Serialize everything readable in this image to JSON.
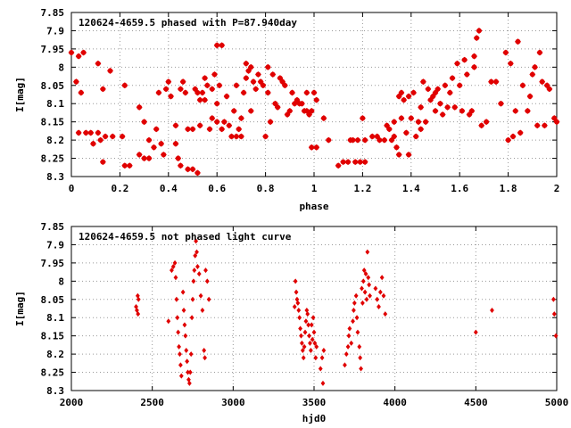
{
  "chart_data": [
    {
      "type": "scatter",
      "title": "120624-4659.5 phased with P=87.940day",
      "xlabel": "phase",
      "ylabel": "I[mag]",
      "xlim": [
        0,
        2
      ],
      "ylim": [
        8.3,
        7.85
      ],
      "y_inverted": true,
      "grid": true,
      "color": "#e00000",
      "marker": "star",
      "x_ticks": [
        "0",
        "0.2",
        "0.4",
        "0.6",
        "0.8",
        "1",
        "1.2",
        "1.4",
        "1.6",
        "1.8",
        "2"
      ],
      "y_ticks": [
        "7.85",
        "7.9",
        "7.95",
        "8",
        "8.05",
        "8.1",
        "8.15",
        "8.2",
        "8.25",
        "8.3"
      ],
      "points": [
        [
          0.0,
          7.96
        ],
        [
          0.03,
          7.97
        ],
        [
          0.05,
          7.96
        ],
        [
          0.02,
          8.04
        ],
        [
          0.04,
          8.07
        ],
        [
          0.11,
          7.99
        ],
        [
          0.13,
          8.06
        ],
        [
          0.16,
          8.01
        ],
        [
          0.03,
          8.18
        ],
        [
          0.06,
          8.18
        ],
        [
          0.08,
          8.18
        ],
        [
          0.09,
          8.21
        ],
        [
          0.11,
          8.18
        ],
        [
          0.12,
          8.2
        ],
        [
          0.14,
          8.19
        ],
        [
          0.17,
          8.19
        ],
        [
          0.13,
          8.26
        ],
        [
          0.21,
          8.19
        ],
        [
          0.22,
          8.27
        ],
        [
          0.24,
          8.27
        ],
        [
          0.22,
          8.05
        ],
        [
          0.28,
          8.24
        ],
        [
          0.3,
          8.25
        ],
        [
          0.28,
          8.11
        ],
        [
          0.3,
          8.15
        ],
        [
          0.32,
          8.2
        ],
        [
          0.32,
          8.25
        ],
        [
          0.34,
          8.22
        ],
        [
          0.35,
          8.17
        ],
        [
          0.37,
          8.21
        ],
        [
          0.38,
          8.24
        ],
        [
          0.36,
          8.07
        ],
        [
          0.39,
          8.06
        ],
        [
          0.4,
          8.04
        ],
        [
          0.41,
          8.08
        ],
        [
          0.43,
          8.21
        ],
        [
          0.43,
          8.16
        ],
        [
          0.44,
          8.25
        ],
        [
          0.45,
          8.06
        ],
        [
          0.45,
          8.27
        ],
        [
          0.46,
          8.04
        ],
        [
          0.47,
          8.07
        ],
        [
          0.48,
          8.17
        ],
        [
          0.48,
          8.28
        ],
        [
          0.5,
          8.28
        ],
        [
          0.51,
          8.06
        ],
        [
          0.52,
          8.07
        ],
        [
          0.52,
          8.29
        ],
        [
          0.53,
          8.16
        ],
        [
          0.54,
          8.07
        ],
        [
          0.55,
          8.03
        ],
        [
          0.56,
          8.05
        ],
        [
          0.57,
          8.17
        ],
        [
          0.58,
          8.14
        ],
        [
          0.58,
          8.06
        ],
        [
          0.59,
          8.02
        ],
        [
          0.6,
          8.15
        ],
        [
          0.6,
          8.1
        ],
        [
          0.61,
          8.05
        ],
        [
          0.62,
          8.17
        ],
        [
          0.63,
          8.15
        ],
        [
          0.64,
          8.08
        ],
        [
          0.65,
          8.16
        ],
        [
          0.66,
          8.19
        ],
        [
          0.67,
          8.12
        ],
        [
          0.68,
          8.05
        ],
        [
          0.69,
          8.17
        ],
        [
          0.7,
          8.14
        ],
        [
          0.71,
          8.07
        ],
        [
          0.72,
          8.03
        ],
        [
          0.73,
          8.01
        ],
        [
          0.74,
          8.12
        ],
        [
          0.75,
          8.04
        ],
        [
          0.76,
          8.06
        ],
        [
          0.77,
          8.02
        ],
        [
          0.78,
          8.04
        ],
        [
          0.79,
          8.05
        ],
        [
          0.8,
          8.19
        ],
        [
          0.81,
          8.07
        ],
        [
          0.82,
          8.15
        ],
        [
          0.83,
          8.02
        ],
        [
          0.84,
          8.1
        ],
        [
          0.85,
          8.11
        ],
        [
          0.86,
          8.03
        ],
        [
          0.87,
          8.04
        ],
        [
          0.88,
          8.05
        ],
        [
          0.89,
          8.13
        ],
        [
          0.9,
          8.12
        ],
        [
          0.91,
          8.07
        ],
        [
          0.92,
          8.1
        ],
        [
          0.93,
          8.09
        ],
        [
          0.94,
          8.1
        ],
        [
          0.95,
          8.1
        ],
        [
          0.96,
          8.12
        ],
        [
          0.97,
          8.07
        ],
        [
          0.98,
          8.13
        ],
        [
          0.99,
          8.12
        ],
        [
          1.0,
          8.07
        ],
        [
          1.01,
          8.09
        ],
        [
          0.97,
          8.12
        ],
        [
          0.99,
          8.22
        ],
        [
          1.01,
          8.22
        ],
        [
          1.04,
          8.14
        ],
        [
          1.06,
          8.2
        ],
        [
          0.6,
          7.94
        ],
        [
          0.62,
          7.94
        ],
        [
          0.72,
          7.99
        ],
        [
          0.74,
          8.0
        ],
        [
          0.81,
          8.0
        ],
        [
          0.55,
          8.09
        ],
        [
          0.53,
          8.09
        ],
        [
          0.68,
          8.19
        ],
        [
          0.7,
          8.19
        ],
        [
          0.5,
          8.17
        ],
        [
          1.1,
          8.27
        ],
        [
          1.12,
          8.26
        ],
        [
          1.14,
          8.26
        ],
        [
          1.15,
          8.2
        ],
        [
          1.16,
          8.2
        ],
        [
          1.17,
          8.26
        ],
        [
          1.18,
          8.2
        ],
        [
          1.19,
          8.26
        ],
        [
          1.2,
          8.14
        ],
        [
          1.21,
          8.26
        ],
        [
          1.21,
          8.2
        ],
        [
          1.24,
          8.19
        ],
        [
          1.26,
          8.19
        ],
        [
          1.27,
          8.2
        ],
        [
          1.29,
          8.2
        ],
        [
          1.3,
          8.16
        ],
        [
          1.31,
          8.17
        ],
        [
          1.32,
          8.2
        ],
        [
          1.33,
          8.19
        ],
        [
          1.33,
          8.15
        ],
        [
          1.34,
          8.22
        ],
        [
          1.35,
          8.24
        ],
        [
          1.35,
          8.08
        ],
        [
          1.36,
          8.07
        ],
        [
          1.36,
          8.14
        ],
        [
          1.37,
          8.09
        ],
        [
          1.38,
          8.18
        ],
        [
          1.39,
          8.24
        ],
        [
          1.39,
          8.08
        ],
        [
          1.4,
          8.14
        ],
        [
          1.41,
          8.07
        ],
        [
          1.42,
          8.19
        ],
        [
          1.43,
          8.15
        ],
        [
          1.44,
          8.17
        ],
        [
          1.44,
          8.11
        ],
        [
          1.45,
          8.04
        ],
        [
          1.46,
          8.15
        ],
        [
          1.47,
          8.06
        ],
        [
          1.48,
          8.09
        ],
        [
          1.49,
          8.08
        ],
        [
          1.5,
          8.07
        ],
        [
          1.5,
          8.12
        ],
        [
          1.51,
          8.06
        ],
        [
          1.52,
          8.1
        ],
        [
          1.53,
          8.13
        ],
        [
          1.54,
          8.05
        ],
        [
          1.55,
          8.11
        ],
        [
          1.56,
          8.07
        ],
        [
          1.57,
          8.03
        ],
        [
          1.58,
          8.11
        ],
        [
          1.59,
          7.99
        ],
        [
          1.6,
          8.05
        ],
        [
          1.61,
          8.12
        ],
        [
          1.62,
          7.98
        ],
        [
          1.63,
          8.02
        ],
        [
          1.64,
          8.13
        ],
        [
          1.65,
          8.12
        ],
        [
          1.66,
          7.97
        ],
        [
          1.66,
          8.0
        ],
        [
          1.67,
          7.92
        ],
        [
          1.68,
          7.9
        ],
        [
          1.69,
          8.16
        ],
        [
          1.71,
          8.15
        ],
        [
          1.73,
          8.04
        ],
        [
          1.75,
          8.04
        ],
        [
          1.77,
          8.1
        ],
        [
          1.79,
          7.96
        ],
        [
          1.8,
          8.2
        ],
        [
          1.81,
          7.99
        ],
        [
          1.82,
          8.19
        ],
        [
          1.83,
          8.12
        ],
        [
          1.84,
          7.93
        ],
        [
          1.85,
          8.18
        ],
        [
          1.86,
          8.05
        ],
        [
          1.88,
          8.12
        ],
        [
          1.89,
          8.08
        ],
        [
          1.9,
          8.02
        ],
        [
          1.91,
          8.0
        ],
        [
          1.92,
          8.16
        ],
        [
          1.93,
          7.96
        ],
        [
          1.94,
          8.04
        ],
        [
          1.95,
          8.16
        ],
        [
          1.96,
          8.05
        ],
        [
          1.97,
          8.06
        ],
        [
          1.99,
          8.14
        ],
        [
          2.0,
          8.15
        ]
      ]
    },
    {
      "type": "scatter",
      "title": "120624-4659.5 not phased light curve",
      "xlabel": "hjd0",
      "ylabel": "I[mag]",
      "xlim": [
        2000,
        5000
      ],
      "ylim": [
        8.3,
        7.85
      ],
      "y_inverted": true,
      "grid": true,
      "color": "#e00000",
      "marker": "diamond",
      "x_ticks": [
        "2000",
        "2500",
        "3000",
        "3500",
        "4000",
        "4500",
        "5000"
      ],
      "y_ticks": [
        "7.85",
        "7.9",
        "7.95",
        "8",
        "8.05",
        "8.1",
        "8.15",
        "8.2",
        "8.25",
        "8.3"
      ],
      "points": [
        [
          2400,
          8.07
        ],
        [
          2405,
          8.08
        ],
        [
          2410,
          8.04
        ],
        [
          2412,
          8.09
        ],
        [
          2415,
          8.05
        ],
        [
          2600,
          8.11
        ],
        [
          2620,
          7.97
        ],
        [
          2630,
          7.96
        ],
        [
          2640,
          7.95
        ],
        [
          2645,
          7.99
        ],
        [
          2650,
          8.05
        ],
        [
          2655,
          8.1
        ],
        [
          2660,
          8.14
        ],
        [
          2665,
          8.18
        ],
        [
          2670,
          8.2
        ],
        [
          2675,
          8.23
        ],
        [
          2680,
          8.26
        ],
        [
          2690,
          8.03
        ],
        [
          2695,
          8.08
        ],
        [
          2700,
          8.12
        ],
        [
          2705,
          8.15
        ],
        [
          2710,
          8.19
        ],
        [
          2715,
          8.22
        ],
        [
          2720,
          8.25
        ],
        [
          2725,
          8.27
        ],
        [
          2730,
          8.28
        ],
        [
          2735,
          8.25
        ],
        [
          2740,
          8.2
        ],
        [
          2745,
          8.1
        ],
        [
          2750,
          8.05
        ],
        [
          2755,
          8.0
        ],
        [
          2760,
          7.97
        ],
        [
          2765,
          7.93
        ],
        [
          2770,
          7.89
        ],
        [
          2775,
          7.92
        ],
        [
          2780,
          7.96
        ],
        [
          2790,
          7.98
        ],
        [
          2800,
          8.04
        ],
        [
          2810,
          8.08
        ],
        [
          2820,
          8.19
        ],
        [
          2825,
          8.21
        ],
        [
          2830,
          7.97
        ],
        [
          2840,
          8.0
        ],
        [
          2850,
          8.05
        ],
        [
          3380,
          8.07
        ],
        [
          3385,
          8.0
        ],
        [
          3390,
          8.03
        ],
        [
          3395,
          8.05
        ],
        [
          3400,
          8.06
        ],
        [
          3405,
          8.08
        ],
        [
          3410,
          8.1
        ],
        [
          3415,
          8.13
        ],
        [
          3420,
          8.15
        ],
        [
          3425,
          8.17
        ],
        [
          3430,
          8.19
        ],
        [
          3435,
          8.21
        ],
        [
          3440,
          8.18
        ],
        [
          3445,
          8.14
        ],
        [
          3450,
          8.11
        ],
        [
          3455,
          8.08
        ],
        [
          3460,
          8.09
        ],
        [
          3465,
          8.12
        ],
        [
          3470,
          8.15
        ],
        [
          3475,
          8.17
        ],
        [
          3480,
          8.19
        ],
        [
          3485,
          8.12
        ],
        [
          3490,
          8.16
        ],
        [
          3495,
          8.1
        ],
        [
          3500,
          8.14
        ],
        [
          3505,
          8.17
        ],
        [
          3510,
          8.21
        ],
        [
          3515,
          8.18
        ],
        [
          3540,
          8.24
        ],
        [
          3550,
          8.21
        ],
        [
          3555,
          8.28
        ],
        [
          3560,
          8.19
        ],
        [
          3690,
          8.23
        ],
        [
          3700,
          8.2
        ],
        [
          3710,
          8.18
        ],
        [
          3715,
          8.15
        ],
        [
          3720,
          8.13
        ],
        [
          3730,
          8.17
        ],
        [
          3740,
          8.11
        ],
        [
          3745,
          8.08
        ],
        [
          3750,
          8.06
        ],
        [
          3760,
          8.04
        ],
        [
          3765,
          8.1
        ],
        [
          3770,
          8.14
        ],
        [
          3780,
          8.18
        ],
        [
          3785,
          8.21
        ],
        [
          3790,
          8.24
        ],
        [
          3795,
          8.02
        ],
        [
          3800,
          8.06
        ],
        [
          3805,
          8.0
        ],
        [
          3810,
          7.97
        ],
        [
          3815,
          8.03
        ],
        [
          3820,
          7.98
        ],
        [
          3825,
          8.05
        ],
        [
          3830,
          7.92
        ],
        [
          3835,
          7.99
        ],
        [
          3840,
          8.01
        ],
        [
          3845,
          8.04
        ],
        [
          3880,
          8.02
        ],
        [
          3890,
          8.05
        ],
        [
          3900,
          8.07
        ],
        [
          3910,
          8.03
        ],
        [
          3920,
          7.99
        ],
        [
          3930,
          8.04
        ],
        [
          3940,
          8.09
        ],
        [
          4500,
          8.14
        ],
        [
          4600,
          8.08
        ],
        [
          4980,
          8.05
        ],
        [
          4985,
          8.09
        ],
        [
          4995,
          8.15
        ]
      ]
    }
  ]
}
